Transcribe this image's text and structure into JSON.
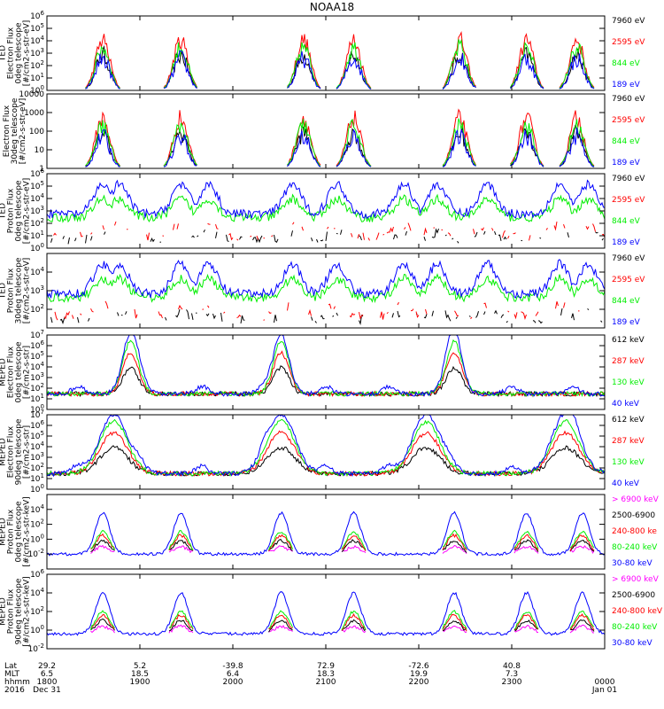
{
  "title": "NOAA18",
  "colors": {
    "black": "#000000",
    "red": "#ff0000",
    "green": "#00ee00",
    "blue": "#0000ff",
    "magenta": "#ff00ff"
  },
  "chart_data": [
    {
      "type": "line",
      "ylabel": [
        "TED",
        "Electron Flux",
        "0deg telescope",
        "[#/cm2-s-str-eV]"
      ],
      "yscale": "log",
      "ylim": [
        1,
        1000000
      ],
      "yticks": [
        "10^0",
        "10^1",
        "10^2",
        "10^3",
        "10^4",
        "10^5",
        "10^6"
      ],
      "series": [
        {
          "name": "7960 eV",
          "color": "black"
        },
        {
          "name": "2595 eV",
          "color": "red"
        },
        {
          "name": "844 eV",
          "color": "green"
        },
        {
          "name": "189 eV",
          "color": "blue"
        }
      ]
    },
    {
      "type": "line",
      "ylabel": [
        "Electron Flux",
        "30deg telescope",
        "[#/cm2-s-str-eV]"
      ],
      "yscale": "log",
      "ylim": [
        1,
        10000
      ],
      "yticks": [
        "1",
        "10",
        "100",
        "1000",
        "10000"
      ],
      "series": [
        {
          "name": "7960 eV",
          "color": "black"
        },
        {
          "name": "2595 eV",
          "color": "red"
        },
        {
          "name": "844 eV",
          "color": "green"
        },
        {
          "name": "189 eV",
          "color": "blue"
        }
      ]
    },
    {
      "type": "line",
      "ylabel": [
        "TED",
        "Proton Flux",
        "0deg telescope",
        "[#/cm2-s-str-eV]"
      ],
      "yscale": "log",
      "ylim": [
        1,
        1000000
      ],
      "yticks": [
        "10^0",
        "10^1",
        "10^2",
        "10^3",
        "10^4",
        "10^5",
        "10^6"
      ],
      "series": [
        {
          "name": "7960 eV",
          "color": "black"
        },
        {
          "name": "2595 eV",
          "color": "red"
        },
        {
          "name": "844 eV",
          "color": "green"
        },
        {
          "name": "189 eV",
          "color": "blue"
        }
      ]
    },
    {
      "type": "line",
      "ylabel": [
        "TED",
        "Proton Flux",
        "30deg telescope",
        "[#/cm2-s-str-eV]"
      ],
      "yscale": "log",
      "ylim": [
        10,
        100000
      ],
      "yticks": [
        "",
        "10^2",
        "10^3",
        "10^4",
        ""
      ],
      "series": [
        {
          "name": "7960 eV",
          "color": "black"
        },
        {
          "name": "2595 eV",
          "color": "red"
        },
        {
          "name": "844 eV",
          "color": "green"
        },
        {
          "name": "189 eV",
          "color": "blue"
        }
      ]
    },
    {
      "type": "line",
      "ylabel": [
        "MEPED",
        "Electron Flux",
        "0deg telescope",
        "[#/cm2-s-str]"
      ],
      "yscale": "log",
      "ylim": [
        1,
        10000000
      ],
      "yticks": [
        "10^0",
        "10^1",
        "10^2",
        "10^3",
        "10^4",
        "10^5",
        "10^6",
        "10^7"
      ],
      "series": [
        {
          "name": "612 keV",
          "color": "black"
        },
        {
          "name": "287 keV",
          "color": "red"
        },
        {
          "name": "130 keV",
          "color": "green"
        },
        {
          "name": "40 keV",
          "color": "blue"
        }
      ]
    },
    {
      "type": "line",
      "ylabel": [
        "MEPED",
        "Electron Flux",
        "90deg telescope",
        "[#/cm2-s-str]"
      ],
      "yscale": "log",
      "ylim": [
        1,
        10000000
      ],
      "yticks": [
        "10^0",
        "10^1",
        "10^2",
        "10^3",
        "10^4",
        "10^5",
        "10^6",
        "10^7"
      ],
      "series": [
        {
          "name": "612 keV",
          "color": "black"
        },
        {
          "name": "287 keV",
          "color": "red"
        },
        {
          "name": "130 keV",
          "color": "green"
        },
        {
          "name": "40 keV",
          "color": "blue"
        }
      ]
    },
    {
      "type": "line",
      "ylabel": [
        "MEPED",
        "Proton Flux",
        "0deg telescope",
        "[#/cm2-s-str-keV]"
      ],
      "yscale": "log",
      "ylim": [
        0.001,
        1000000
      ],
      "yticks": [
        "",
        "10^-2",
        "10^0",
        "10^2",
        "10^4",
        ""
      ],
      "series": [
        {
          "name": "> 6900 keV",
          "color": "magenta"
        },
        {
          "name": "2500-6900",
          "color": "black"
        },
        {
          "name": "240-800 ke",
          "color": "red"
        },
        {
          "name": "80-240 keV",
          "color": "green"
        },
        {
          "name": "30-80 keV",
          "color": "blue"
        }
      ]
    },
    {
      "type": "line",
      "ylabel": [
        "MEPED",
        "Proton Flux",
        "90deg telescope",
        "[#/cm2-s-str-keV]"
      ],
      "yscale": "log",
      "ylim": [
        0.001,
        1000000
      ],
      "yticks": [
        "10^-2",
        "10^0",
        "10^2",
        "10^4",
        "10^6"
      ],
      "series": [
        {
          "name": "> 6900 keV",
          "color": "magenta"
        },
        {
          "name": "2500-6900",
          "color": "black"
        },
        {
          "name": "240-800 keV",
          "color": "red"
        },
        {
          "name": "80-240 keV",
          "color": "green"
        },
        {
          "name": "30-80 keV",
          "color": "blue"
        }
      ]
    }
  ],
  "x_axis": {
    "row_labels": [
      "Lat",
      "MLT",
      "hhmm",
      "2016"
    ],
    "ticks": [
      {
        "lat": "29.2",
        "mlt": "6.5",
        "hhmm": "1800",
        "date": "Dec 31"
      },
      {
        "lat": "5.2",
        "mlt": "18.5",
        "hhmm": "1900",
        "date": ""
      },
      {
        "lat": "-39.8",
        "mlt": "6.4",
        "hhmm": "2000",
        "date": ""
      },
      {
        "lat": "72.9",
        "mlt": "18.3",
        "hhmm": "2100",
        "date": ""
      },
      {
        "lat": "-72.6",
        "mlt": "19.9",
        "hhmm": "2200",
        "date": ""
      },
      {
        "lat": "40.8",
        "mlt": "7.3",
        "hhmm": "2300",
        "date": ""
      },
      {
        "lat": "",
        "mlt": "",
        "hhmm": "0000",
        "date": "Jan 01"
      }
    ]
  }
}
